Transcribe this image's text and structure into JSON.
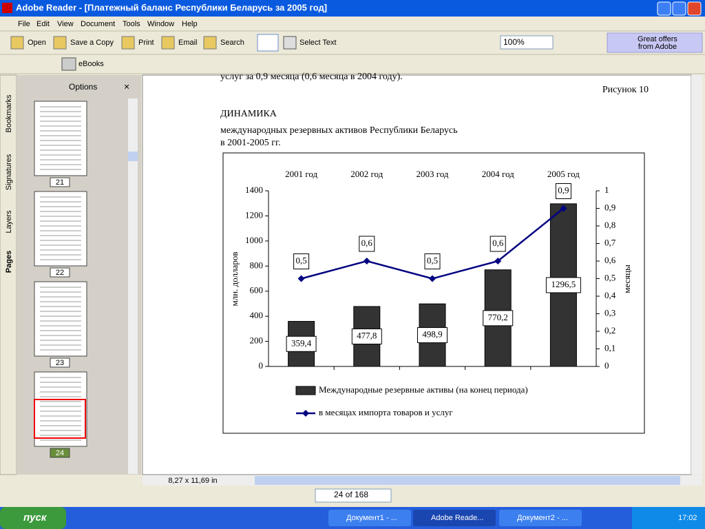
{
  "window": {
    "title": "Adobe Reader - [Платежный баланс Республики Беларусь за 2005 год]"
  },
  "menu": [
    "File",
    "Edit",
    "View",
    "Document",
    "Tools",
    "Window",
    "Help"
  ],
  "toolbar": {
    "buttons": [
      "Open",
      "Save a Copy",
      "Print",
      "Email",
      "Search"
    ],
    "select_text": "Select Text",
    "zoom": "100%",
    "promo": [
      "Great offers",
      "from Adobe"
    ],
    "ebooks": "eBooks"
  },
  "sidebar": {
    "options": "Options",
    "tabs": [
      "Bookmarks",
      "Signatures",
      "Layers",
      "Pages"
    ],
    "thumbnails": [
      "21",
      "22",
      "23",
      "24"
    ]
  },
  "document": {
    "text_top": "услуг за 0,9 месяца (0,6 месяца в 2004 году).",
    "figure": "Рисунок 10",
    "heading": "ДИНАМИКА",
    "subtitle": [
      "международных резервных активов Республики Беларусь",
      "в 2001-2005 гг."
    ]
  },
  "chart_data": {
    "type": "bar",
    "categories": [
      "2001 год",
      "2002 год",
      "2003 год",
      "2004 год",
      "2005 год"
    ],
    "y_label": "млн. долларов",
    "y2_label": "месяцы",
    "series": [
      {
        "name": "Международные резервные активы (на конец периода)",
        "color": "#333333",
        "values": [
          359.4,
          477.8,
          498.9,
          770.2,
          1296.5
        ],
        "value_labels": [
          "359,4",
          "477,8",
          "498,9",
          "770,2",
          "1296,5"
        ]
      },
      {
        "name": "в месяцах импорта товаров и услуг",
        "color": "#000080",
        "axis": "y2",
        "values": [
          0.5,
          0.6,
          0.5,
          0.6,
          0.9
        ],
        "value_labels": [
          "0,5",
          "0,6",
          "0,5",
          "0,6",
          "0,9"
        ]
      }
    ],
    "ylim": [
      0,
      1400
    ],
    "yticks": [
      0,
      200,
      400,
      600,
      800,
      1000,
      1200,
      1400
    ],
    "y2lim": [
      0,
      1
    ],
    "y2ticks": [
      0,
      {
        "value": 0.1,
        "label": "0,1"
      },
      {
        "value": 0.2,
        "label": "0,2"
      },
      {
        "value": 0.3,
        "label": "0,3"
      },
      {
        "value": 0.4,
        "label": "0,4"
      },
      {
        "value": 0.5,
        "label": "0,5"
      },
      {
        "value": 0.6,
        "label": "0,6"
      },
      {
        "value": 0.7,
        "label": "0,7"
      },
      {
        "value": 0.8,
        "label": "0,8"
      },
      {
        "value": 0.9,
        "label": "0,9"
      },
      1
    ],
    "legend": "bottom"
  },
  "status": {
    "page_size": "8,27 x 11,69 in",
    "page": "24 of 168"
  },
  "taskbar": {
    "start": "пуск",
    "tasks": [
      "Документ1 - ...",
      "Adobe Reade...",
      "Документ2 - ..."
    ],
    "clock": "17:02"
  }
}
